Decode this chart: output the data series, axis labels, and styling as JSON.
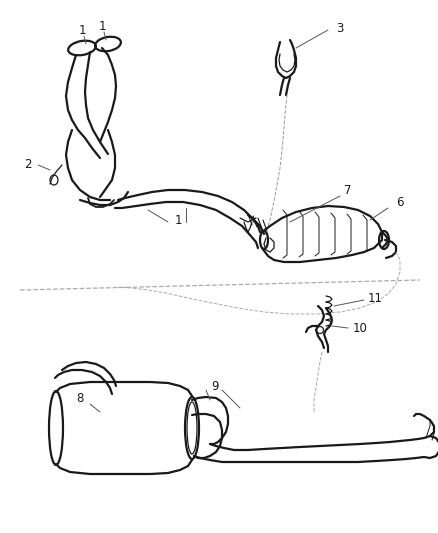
{
  "bg_color": "#ffffff",
  "line_color": "#1a1a1a",
  "label_color": "#1a1a1a",
  "anno_color": "#555555",
  "figsize": [
    4.38,
    5.33
  ],
  "dpi": 100,
  "lw_main": 1.6,
  "lw_thin": 0.9,
  "lw_anno": 0.7,
  "label_fontsize": 8.5,
  "xlim": [
    0,
    438
  ],
  "ylim": [
    0,
    533
  ]
}
